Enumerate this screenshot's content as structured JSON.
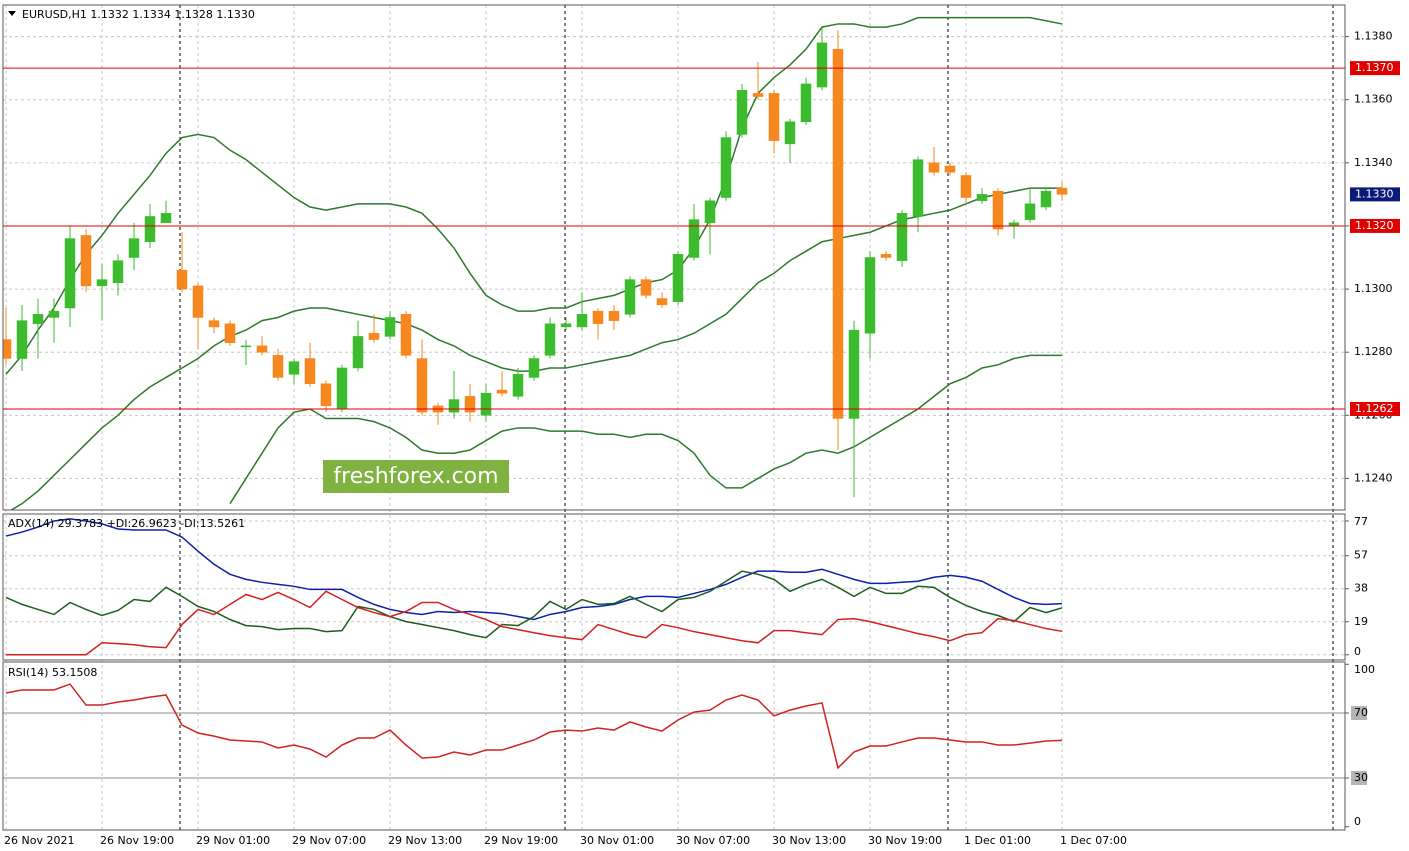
{
  "chart_data": [
    {
      "type": "candlestick",
      "title": "EURUSD,H1  1.1332 1.1334 1.1328 1.1330",
      "categories": [
        "26 Nov 2021",
        null,
        null,
        null,
        null,
        null,
        "26 Nov 19:00",
        null,
        null,
        null,
        null,
        null,
        "29 Nov 01:00",
        null,
        null,
        null,
        null,
        null,
        "29 Nov 07:00",
        null,
        null,
        null,
        null,
        null,
        "29 Nov 13:00",
        null,
        null,
        null,
        null,
        null,
        "29 Nov 19:00",
        null,
        null,
        null,
        null,
        null,
        "30 Nov 01:00",
        null,
        null,
        null,
        null,
        null,
        "30 Nov 07:00",
        null,
        null,
        null,
        null,
        null,
        "30 Nov 13:00",
        null,
        null,
        null,
        null,
        null,
        "30 Nov 19:00",
        null,
        null,
        null,
        null,
        null,
        "1 Dec 01:00",
        null,
        null,
        null,
        null,
        null,
        "1 Dec 07:00"
      ],
      "open": [
        1.1284,
        1.1278,
        1.1289,
        1.1291,
        1.1294,
        1.1317,
        1.1301,
        1.1302,
        1.131,
        1.1315,
        1.1321,
        1.1306,
        1.1301,
        1.129,
        1.1289,
        1.1282,
        1.1282,
        1.1279,
        1.1273,
        1.1278,
        1.127,
        1.1262,
        1.1275,
        1.1286,
        1.1285,
        1.1292,
        1.1278,
        1.1263,
        1.1261,
        1.1266,
        1.126,
        1.1268,
        1.1266,
        1.1272,
        1.1279,
        1.1288,
        1.1288,
        1.1293,
        1.1293,
        1.1292,
        1.1303,
        1.1297,
        1.1296,
        1.131,
        1.1321,
        1.1329,
        1.1349,
        1.1362,
        1.1362,
        1.1346,
        1.1353,
        1.1364,
        1.1376,
        1.1259,
        1.1286,
        1.1311,
        1.1309,
        1.1323,
        1.134,
        1.1339,
        1.1336,
        1.1328,
        1.1331,
        1.132,
        1.1322,
        1.1326,
        1.1332
      ],
      "high": [
        1.1294,
        1.1295,
        1.1297,
        1.1297,
        1.132,
        1.1319,
        1.1308,
        1.1311,
        1.1321,
        1.1327,
        1.1328,
        1.1318,
        1.1302,
        1.1291,
        1.129,
        1.1284,
        1.1285,
        1.1281,
        1.1278,
        1.1283,
        1.1271,
        1.1276,
        1.129,
        1.1292,
        1.1293,
        1.1293,
        1.1284,
        1.1264,
        1.1274,
        1.127,
        1.127,
        1.1274,
        1.1275,
        1.1279,
        1.1291,
        1.1291,
        1.1299,
        1.1294,
        1.1295,
        1.1304,
        1.1304,
        1.1299,
        1.1312,
        1.1327,
        1.1329,
        1.135,
        1.1365,
        1.1372,
        1.1363,
        1.1354,
        1.1367,
        1.1383,
        1.1382,
        1.129,
        1.1312,
        1.1312,
        1.1325,
        1.1342,
        1.1345,
        1.134,
        1.1337,
        1.1332,
        1.1332,
        1.1322,
        1.1332,
        1.1332,
        1.1334
      ],
      "low": [
        1.1276,
        1.1274,
        1.1278,
        1.1283,
        1.1288,
        1.1299,
        1.129,
        1.1298,
        1.1306,
        1.1313,
        1.1321,
        1.1299,
        1.1281,
        1.1286,
        1.1282,
        1.1276,
        1.1279,
        1.1271,
        1.127,
        1.1269,
        1.1261,
        1.1261,
        1.1274,
        1.1283,
        1.1284,
        1.1278,
        1.126,
        1.1257,
        1.1259,
        1.1258,
        1.1258,
        1.1266,
        1.1265,
        1.1271,
        1.1278,
        1.1287,
        1.1287,
        1.1284,
        1.1287,
        1.1291,
        1.1297,
        1.1294,
        1.1295,
        1.1309,
        1.1311,
        1.1328,
        1.1348,
        1.136,
        1.1343,
        1.134,
        1.1352,
        1.1363,
        1.1249,
        1.1234,
        1.1278,
        1.1309,
        1.1307,
        1.1318,
        1.1336,
        1.1336,
        1.1327,
        1.1327,
        1.1317,
        1.1316,
        1.1321,
        1.1325,
        1.1328
      ],
      "close": [
        1.1278,
        1.129,
        1.1292,
        1.1293,
        1.1316,
        1.1301,
        1.1303,
        1.1309,
        1.1316,
        1.1323,
        1.1324,
        1.13,
        1.1291,
        1.1288,
        1.1283,
        1.1282,
        1.128,
        1.1272,
        1.1277,
        1.127,
        1.1263,
        1.1275,
        1.1285,
        1.1284,
        1.1291,
        1.1279,
        1.1261,
        1.1261,
        1.1265,
        1.1261,
        1.1267,
        1.1267,
        1.1273,
        1.1278,
        1.1289,
        1.1289,
        1.1292,
        1.1289,
        1.129,
        1.1303,
        1.1298,
        1.1295,
        1.1311,
        1.1322,
        1.1328,
        1.1348,
        1.1363,
        1.1361,
        1.1347,
        1.1353,
        1.1365,
        1.1378,
        1.1259,
        1.1287,
        1.131,
        1.131,
        1.1324,
        1.1341,
        1.1337,
        1.1337,
        1.1329,
        1.133,
        1.1319,
        1.1321,
        1.1327,
        1.1331,
        1.133
      ],
      "up_color": "#3dbb2e",
      "down_color": "#f7871e",
      "overlays": [
        {
          "color": "#2d7a2d",
          "values": [
            1.1273,
            1.1279,
            1.1287,
            1.1294,
            1.1303,
            1.1311,
            1.1317,
            1.1324,
            1.133,
            1.1336,
            1.1343,
            1.1348,
            1.1349,
            1.1348,
            1.1344,
            1.1341,
            1.1337,
            1.1333,
            1.1329,
            1.1326,
            1.1325,
            1.1326,
            1.1327,
            1.1327,
            1.1327,
            1.1326,
            1.1324,
            1.1319,
            1.1313,
            1.1305,
            1.1298,
            1.1295,
            1.1293,
            1.1293,
            1.1294,
            1.1294,
            1.1296,
            1.1297,
            1.1298,
            1.13,
            1.1302,
            1.1303,
            1.1306,
            1.1313,
            1.1322,
            1.1335,
            1.1351,
            1.1362,
            1.1367,
            1.1371,
            1.1376,
            1.1383,
            1.1384,
            1.1384,
            1.1383,
            1.1383,
            1.1384,
            1.1386,
            1.1386,
            1.1386,
            1.1386,
            1.1386,
            1.1386,
            1.1386,
            1.1386,
            1.1385,
            1.1384
          ]
        },
        {
          "color": "#2d7a2d",
          "values": [
            1.1229,
            1.1232,
            1.1236,
            1.1241,
            1.1246,
            1.1251,
            1.1256,
            1.126,
            1.1265,
            1.1269,
            1.1272,
            1.1275,
            1.1278,
            1.1282,
            1.1285,
            1.1287,
            1.129,
            1.1291,
            1.1293,
            1.1294,
            1.1294,
            1.1293,
            1.1292,
            1.1291,
            1.129,
            1.1289,
            1.1287,
            1.1284,
            1.1282,
            1.1279,
            1.1277,
            1.1275,
            1.1274,
            1.1274,
            1.1275,
            1.1275,
            1.1276,
            1.1277,
            1.1278,
            1.1279,
            1.1281,
            1.1283,
            1.1284,
            1.1286,
            1.1289,
            1.1292,
            1.1297,
            1.1302,
            1.1305,
            1.1309,
            1.1312,
            1.1315,
            1.1316,
            1.1317,
            1.1318,
            1.132,
            1.1322,
            1.1323,
            1.1324,
            1.1325,
            1.1327,
            1.1329,
            1.133,
            1.1331,
            1.1332,
            1.1332,
            1.1332
          ]
        },
        {
          "color": "#2d7a2d",
          "values": [
            null,
            null,
            null,
            null,
            null,
            null,
            null,
            null,
            null,
            null,
            null,
            null,
            null,
            null,
            1.1232,
            1.124,
            1.1248,
            1.1256,
            1.1261,
            1.1262,
            1.1259,
            1.1259,
            1.1259,
            1.1258,
            1.1256,
            1.1253,
            1.1249,
            1.1248,
            1.1248,
            1.1249,
            1.1252,
            1.1255,
            1.1256,
            1.1256,
            1.1255,
            1.1255,
            1.1255,
            1.1254,
            1.1254,
            1.1253,
            1.1254,
            1.1254,
            1.1252,
            1.1248,
            1.1241,
            1.1237,
            1.1237,
            1.124,
            1.1243,
            1.1245,
            1.1248,
            1.1249,
            1.1248,
            1.125,
            1.1253,
            1.1256,
            1.1259,
            1.1262,
            1.1266,
            1.127,
            1.1272,
            1.1275,
            1.1276,
            1.1278,
            1.1279,
            1.1279,
            1.1279
          ]
        }
      ],
      "levels": [
        {
          "value": 1.137,
          "label": "1.1370"
        },
        {
          "value": 1.132,
          "label": "1.1320"
        },
        {
          "value": 1.1262,
          "label": "1.1262"
        }
      ],
      "level_color": "#e00000",
      "last_price": {
        "value": 1.133,
        "label": "1.1330"
      },
      "last_price_color": "#0a1a78",
      "ylim": [
        1.123,
        1.139
      ],
      "yticks": [
        {
          "value": 1.124,
          "label": "1.1240"
        },
        {
          "value": 1.126,
          "label": "1.1260"
        },
        {
          "value": 1.128,
          "label": "1.1280"
        },
        {
          "value": 1.13,
          "label": "1.1300"
        },
        {
          "value": 1.132,
          "label": "1.1320"
        },
        {
          "value": 1.134,
          "label": "1.1340"
        },
        {
          "value": 1.136,
          "label": "1.1360"
        },
        {
          "value": 1.138,
          "label": "1.1380"
        }
      ],
      "watermark": "freshforex.com",
      "grid": true
    },
    {
      "type": "line",
      "title": "ADX(14) 29.3783 +DI:26.9623 -DI:13.5261",
      "series": [
        {
          "color": "#0a22a8",
          "values": [
            68.3,
            70.6,
            73.5,
            77,
            78.2,
            77,
            75.3,
            72.4,
            71.8,
            71.8,
            71.8,
            67.7,
            59.6,
            52.1,
            46.3,
            43.4,
            41.7,
            40.5,
            39.4,
            37.6,
            37.6,
            37.6,
            33,
            29,
            26.1,
            24.3,
            23.2,
            24.9,
            24.3,
            24.9,
            24.3,
            23.7,
            22,
            20.3,
            23.2,
            24.9,
            27.2,
            27.8,
            29,
            31.8,
            33.6,
            33.6,
            33,
            35.3,
            37.6,
            40.5,
            44.6,
            48.1,
            48.1,
            47.5,
            47.5,
            49.2,
            46.3,
            43.4,
            41.1,
            41.1,
            41.7,
            42.3,
            44.6,
            45.7,
            44.6,
            42.3,
            37.6,
            33,
            29.5,
            29,
            29.4
          ]
        },
        {
          "color": "#1e5e1e",
          "values": [
            33,
            29,
            26.1,
            23.2,
            30.1,
            26.1,
            22.6,
            25.5,
            31.8,
            30.7,
            38.8,
            33.6,
            27.8,
            24.9,
            20.3,
            16.8,
            16.2,
            14.5,
            15.1,
            15.1,
            13.3,
            13.9,
            27.8,
            26.1,
            22,
            19.1,
            17.4,
            15.6,
            13.9,
            11.6,
            9.8,
            17.4,
            16.8,
            22,
            30.7,
            26.1,
            31.8,
            29,
            29.5,
            33.6,
            29,
            24.9,
            31.8,
            33,
            36.5,
            42.3,
            48.1,
            46.3,
            43.4,
            36.5,
            40.5,
            43.4,
            38.8,
            33.6,
            38.8,
            35.3,
            35.3,
            39.4,
            38.8,
            33,
            28.4,
            24.9,
            22.6,
            19.1,
            27.2,
            24.3,
            27
          ]
        },
        {
          "color": "#d42020",
          "values": [
            0,
            0,
            0,
            0,
            0,
            0,
            6.9,
            6.4,
            5.8,
            4.6,
            4.1,
            17.4,
            26.1,
            23.2,
            29,
            34.7,
            31.8,
            35.9,
            31.8,
            27.2,
            36.5,
            31.8,
            27.2,
            24.3,
            22,
            24.9,
            30.1,
            30.1,
            26.1,
            23.2,
            20.3,
            16.2,
            14.5,
            12.7,
            11,
            9.8,
            8.7,
            17.4,
            14.5,
            11.6,
            9.8,
            17.4,
            15.6,
            13.3,
            11.6,
            9.8,
            8.1,
            6.9,
            13.9,
            13.9,
            12.7,
            11.6,
            20.3,
            20.8,
            19.1,
            16.8,
            14.5,
            12.2,
            10.4,
            8.1,
            11.6,
            12.7,
            20.8,
            19.7,
            17.4,
            15.1,
            13.5
          ]
        }
      ],
      "ylim": [
        -3,
        81
      ],
      "yticks": [
        0,
        19,
        38,
        57,
        77
      ],
      "grid": true
    },
    {
      "type": "line",
      "title": "RSI(14) 53.1508",
      "series": [
        {
          "color": "#d42020",
          "values": [
            82.3,
            84.2,
            84.2,
            84.2,
            87.8,
            74.9,
            74.9,
            76.8,
            78,
            79.8,
            81.1,
            62.6,
            57.7,
            55.8,
            53.4,
            52.8,
            52.2,
            48.5,
            50.3,
            47.8,
            42.9,
            50.3,
            54.6,
            54.6,
            59.5,
            50.3,
            42.3,
            42.9,
            46,
            44.2,
            47.2,
            47.2,
            50.3,
            53.4,
            58.3,
            59.5,
            58.9,
            60.8,
            59.5,
            64.5,
            61.4,
            58.9,
            65.7,
            70.6,
            71.8,
            78,
            81.1,
            78,
            68.2,
            71.8,
            74.3,
            76.2,
            36.2,
            46,
            49.7,
            49.7,
            52.2,
            54.6,
            54.6,
            53.4,
            52.2,
            52.2,
            50.3,
            50.3,
            51.5,
            52.8,
            53.2
          ]
        }
      ],
      "ylim": [
        -2,
        101.4
      ],
      "yticks": [
        0,
        30,
        70,
        100
      ],
      "levels": [
        70,
        30
      ],
      "level_color": "#b4b4b4",
      "grid": false
    }
  ]
}
